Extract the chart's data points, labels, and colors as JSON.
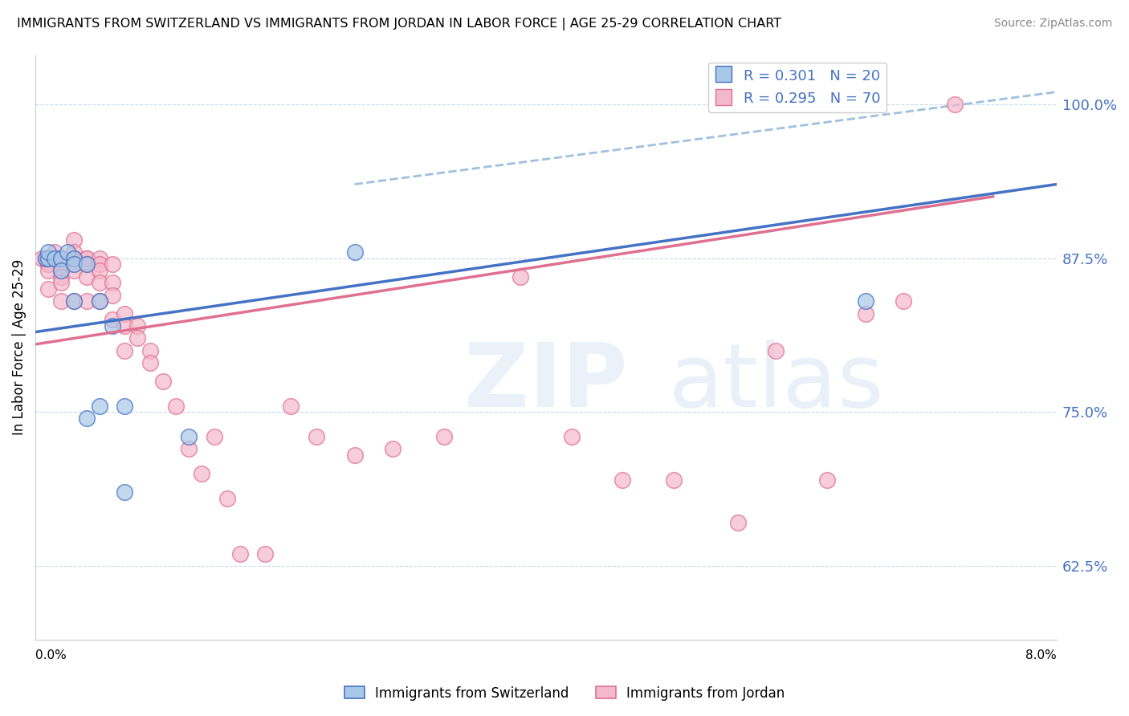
{
  "title": "IMMIGRANTS FROM SWITZERLAND VS IMMIGRANTS FROM JORDAN IN LABOR FORCE | AGE 25-29 CORRELATION CHART",
  "source": "Source: ZipAtlas.com",
  "ylabel": "In Labor Force | Age 25-29",
  "legend_label1": "Immigrants from Switzerland",
  "legend_label2": "Immigrants from Jordan",
  "R1": 0.301,
  "N1": 20,
  "R2": 0.295,
  "N2": 70,
  "color_swiss": "#a8c8e8",
  "color_jordan": "#f4b8cc",
  "color_swiss_line": "#4472c4",
  "color_jordan_line": "#e07090",
  "color_dashed": "#a0c0e0",
  "xlim": [
    0.0,
    0.08
  ],
  "ylim": [
    0.565,
    1.04
  ],
  "yticks": [
    0.625,
    0.75,
    0.875,
    1.0
  ],
  "ytick_labels": [
    "62.5%",
    "75.0%",
    "87.5%",
    "100.0%"
  ],
  "swiss_x": [
    0.0008,
    0.001,
    0.001,
    0.0015,
    0.002,
    0.002,
    0.0025,
    0.003,
    0.003,
    0.003,
    0.004,
    0.004,
    0.005,
    0.005,
    0.006,
    0.007,
    0.007,
    0.012,
    0.025,
    0.065
  ],
  "swiss_y": [
    0.875,
    0.875,
    0.88,
    0.875,
    0.875,
    0.865,
    0.88,
    0.875,
    0.87,
    0.84,
    0.87,
    0.745,
    0.755,
    0.84,
    0.82,
    0.755,
    0.685,
    0.73,
    0.88,
    0.84
  ],
  "jordan_x": [
    0.0005,
    0.0008,
    0.001,
    0.001,
    0.001,
    0.001,
    0.001,
    0.001,
    0.001,
    0.001,
    0.0015,
    0.002,
    0.002,
    0.002,
    0.002,
    0.002,
    0.002,
    0.002,
    0.002,
    0.003,
    0.003,
    0.003,
    0.003,
    0.003,
    0.003,
    0.003,
    0.004,
    0.004,
    0.004,
    0.004,
    0.004,
    0.005,
    0.005,
    0.005,
    0.005,
    0.005,
    0.006,
    0.006,
    0.006,
    0.006,
    0.007,
    0.007,
    0.007,
    0.008,
    0.008,
    0.009,
    0.009,
    0.01,
    0.011,
    0.012,
    0.013,
    0.014,
    0.015,
    0.016,
    0.018,
    0.02,
    0.022,
    0.025,
    0.028,
    0.032,
    0.038,
    0.042,
    0.046,
    0.05,
    0.055,
    0.058,
    0.062,
    0.065,
    0.068,
    0.072
  ],
  "jordan_y": [
    0.875,
    0.875,
    0.875,
    0.875,
    0.875,
    0.875,
    0.87,
    0.87,
    0.865,
    0.85,
    0.88,
    0.875,
    0.875,
    0.875,
    0.87,
    0.865,
    0.86,
    0.855,
    0.84,
    0.89,
    0.88,
    0.875,
    0.875,
    0.87,
    0.865,
    0.84,
    0.875,
    0.875,
    0.87,
    0.86,
    0.84,
    0.875,
    0.87,
    0.865,
    0.855,
    0.84,
    0.87,
    0.855,
    0.845,
    0.825,
    0.83,
    0.82,
    0.8,
    0.82,
    0.81,
    0.8,
    0.79,
    0.775,
    0.755,
    0.72,
    0.7,
    0.73,
    0.68,
    0.635,
    0.635,
    0.755,
    0.73,
    0.715,
    0.72,
    0.73,
    0.86,
    0.73,
    0.695,
    0.695,
    0.66,
    0.8,
    0.695,
    0.83,
    0.84,
    1.0
  ],
  "swiss_line_x": [
    0.0,
    0.08
  ],
  "swiss_line_y": [
    0.815,
    0.935
  ],
  "jordan_line_x": [
    0.0,
    0.075
  ],
  "jordan_line_y": [
    0.805,
    0.925
  ],
  "dashed_line_x": [
    0.025,
    0.08
  ],
  "dashed_line_y": [
    0.935,
    1.01
  ]
}
